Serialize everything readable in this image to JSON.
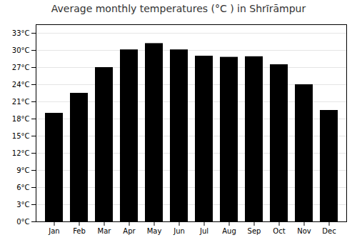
{
  "chart_data": {
    "type": "bar",
    "title": "Average monthly temperatures (°C ) in Shrīrāmpur",
    "categories": [
      "Jan",
      "Feb",
      "Mar",
      "Apr",
      "May",
      "Jun",
      "Jul",
      "Aug",
      "Sep",
      "Oct",
      "Nov",
      "Dec"
    ],
    "values": [
      19.0,
      22.5,
      27.0,
      30.1,
      31.2,
      30.1,
      29.0,
      28.8,
      28.9,
      27.5,
      24.0,
      19.5
    ],
    "ylim": [
      0,
      34.5
    ],
    "yticks": [
      {
        "value": 0,
        "label": "0°C"
      },
      {
        "value": 3,
        "label": "3°C"
      },
      {
        "value": 6,
        "label": "6°C"
      },
      {
        "value": 9,
        "label": "9°C"
      },
      {
        "value": 12,
        "label": "12°C"
      },
      {
        "value": 15,
        "label": "15°C"
      },
      {
        "value": 18,
        "label": "18°C"
      },
      {
        "value": 21,
        "label": "21°C"
      },
      {
        "value": 24,
        "label": "24°C"
      },
      {
        "value": 27,
        "label": "27°C"
      },
      {
        "value": 30,
        "label": "30°C"
      },
      {
        "value": 33,
        "label": "33°C"
      }
    ],
    "grid": true
  }
}
